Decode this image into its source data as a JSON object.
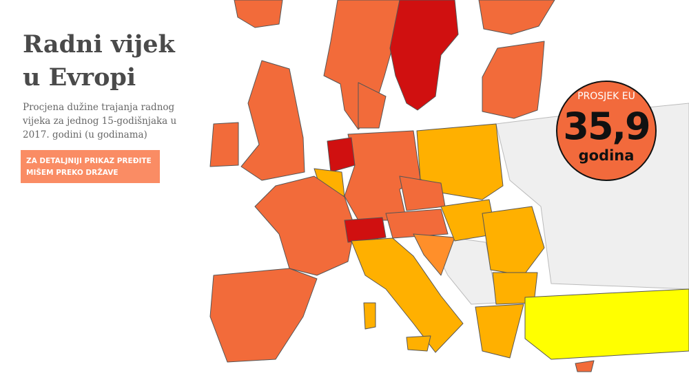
{
  "header": {
    "title_lines": [
      "Radni vijek",
      "u Evropi"
    ],
    "subtitle_lines": [
      "Procjena dužine trajanja radnog",
      "vijeka za jednog 15-godišnjaka u",
      "2017. godini (u godinama)"
    ]
  },
  "hint": {
    "lines": [
      "ZA DETALJNIJI PRIKAZ PREĐITE",
      "MIŠEM PREKO DRŽAVE"
    ]
  },
  "badge": {
    "label": "PROSJEK EU",
    "value": "35,9",
    "unit": "godina"
  }
}
